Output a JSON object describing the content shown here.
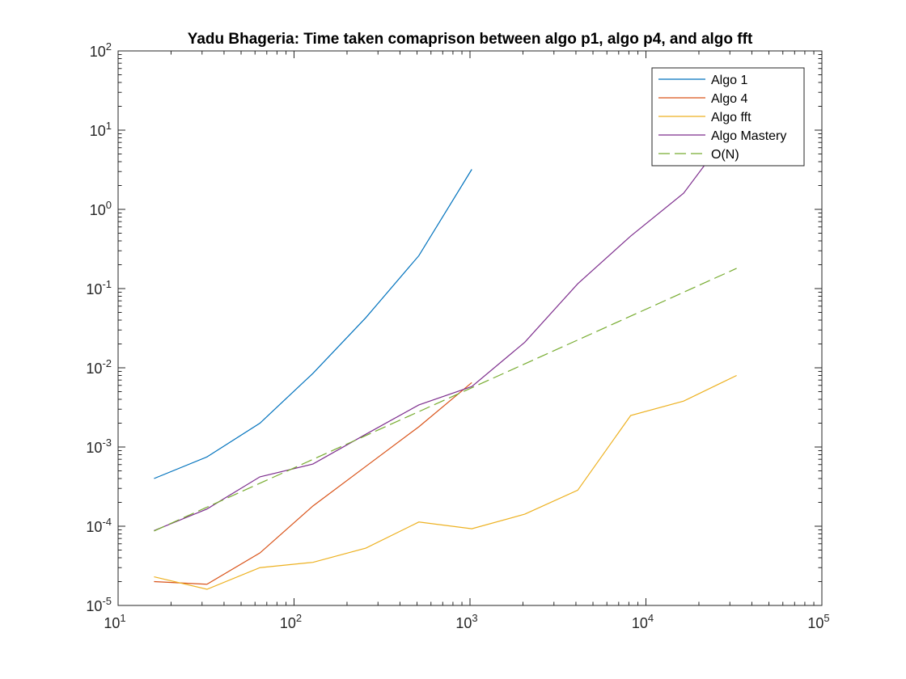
{
  "chart_data": {
    "type": "line",
    "title": "Yadu Bhageria: Time taken comaprison between algo p1, algo p4, and algo fft",
    "xlabel": "",
    "ylabel": "",
    "xscale": "log",
    "yscale": "log",
    "xlim": [
      10,
      100000
    ],
    "ylim": [
      1e-05,
      100
    ],
    "grid": false,
    "legend_position": "top-right",
    "x_ticks": [
      {
        "value": 10,
        "base": "10",
        "exp": "1"
      },
      {
        "value": 100,
        "base": "10",
        "exp": "2"
      },
      {
        "value": 1000,
        "base": "10",
        "exp": "3"
      },
      {
        "value": 10000,
        "base": "10",
        "exp": "4"
      },
      {
        "value": 100000,
        "base": "10",
        "exp": "5"
      }
    ],
    "y_ticks": [
      {
        "value": 1e-05,
        "base": "10",
        "exp": "-5"
      },
      {
        "value": 0.0001,
        "base": "10",
        "exp": "-4"
      },
      {
        "value": 0.001,
        "base": "10",
        "exp": "-3"
      },
      {
        "value": 0.01,
        "base": "10",
        "exp": "-2"
      },
      {
        "value": 0.1,
        "base": "10",
        "exp": "-1"
      },
      {
        "value": 1,
        "base": "10",
        "exp": "0"
      },
      {
        "value": 10,
        "base": "10",
        "exp": "1"
      },
      {
        "value": 100,
        "base": "10",
        "exp": "2"
      }
    ],
    "series": [
      {
        "name": "Algo 1",
        "color": "#0072BD",
        "dash": "solid",
        "x": [
          16,
          32,
          64,
          128,
          256,
          512,
          1024
        ],
        "y": [
          0.0004,
          0.00075,
          0.002,
          0.0085,
          0.043,
          0.26,
          3.2
        ]
      },
      {
        "name": "Algo 4",
        "color": "#D95319",
        "dash": "solid",
        "x": [
          16,
          32,
          64,
          128,
          256,
          512,
          1024
        ],
        "y": [
          2e-05,
          1.85e-05,
          4.6e-05,
          0.00018,
          0.00057,
          0.0018,
          0.0065
        ]
      },
      {
        "name": "Algo fft",
        "color": "#EDB120",
        "dash": "solid",
        "x": [
          16,
          32,
          64,
          128,
          256,
          512,
          1024,
          2048,
          4096,
          8192,
          16384,
          32768
        ],
        "y": [
          2.3e-05,
          1.6e-05,
          3e-05,
          3.5e-05,
          5.3e-05,
          0.000113,
          9.3e-05,
          0.000142,
          0.000285,
          0.0025,
          0.0038,
          0.008
        ]
      },
      {
        "name": "Algo Mastery",
        "color": "#7E2F8E",
        "dash": "solid",
        "x": [
          16,
          32,
          64,
          128,
          256,
          512,
          1024,
          2048,
          4096,
          8192,
          16384,
          32768
        ],
        "y": [
          8.8e-05,
          0.000165,
          0.00042,
          0.00061,
          0.00145,
          0.0034,
          0.0058,
          0.021,
          0.115,
          0.46,
          1.6,
          12.5
        ]
      },
      {
        "name": "O(N)",
        "color": "#77AC30",
        "dash": "dashed",
        "x": [
          16,
          32768
        ],
        "y": [
          8.7e-05,
          0.18
        ]
      }
    ]
  }
}
